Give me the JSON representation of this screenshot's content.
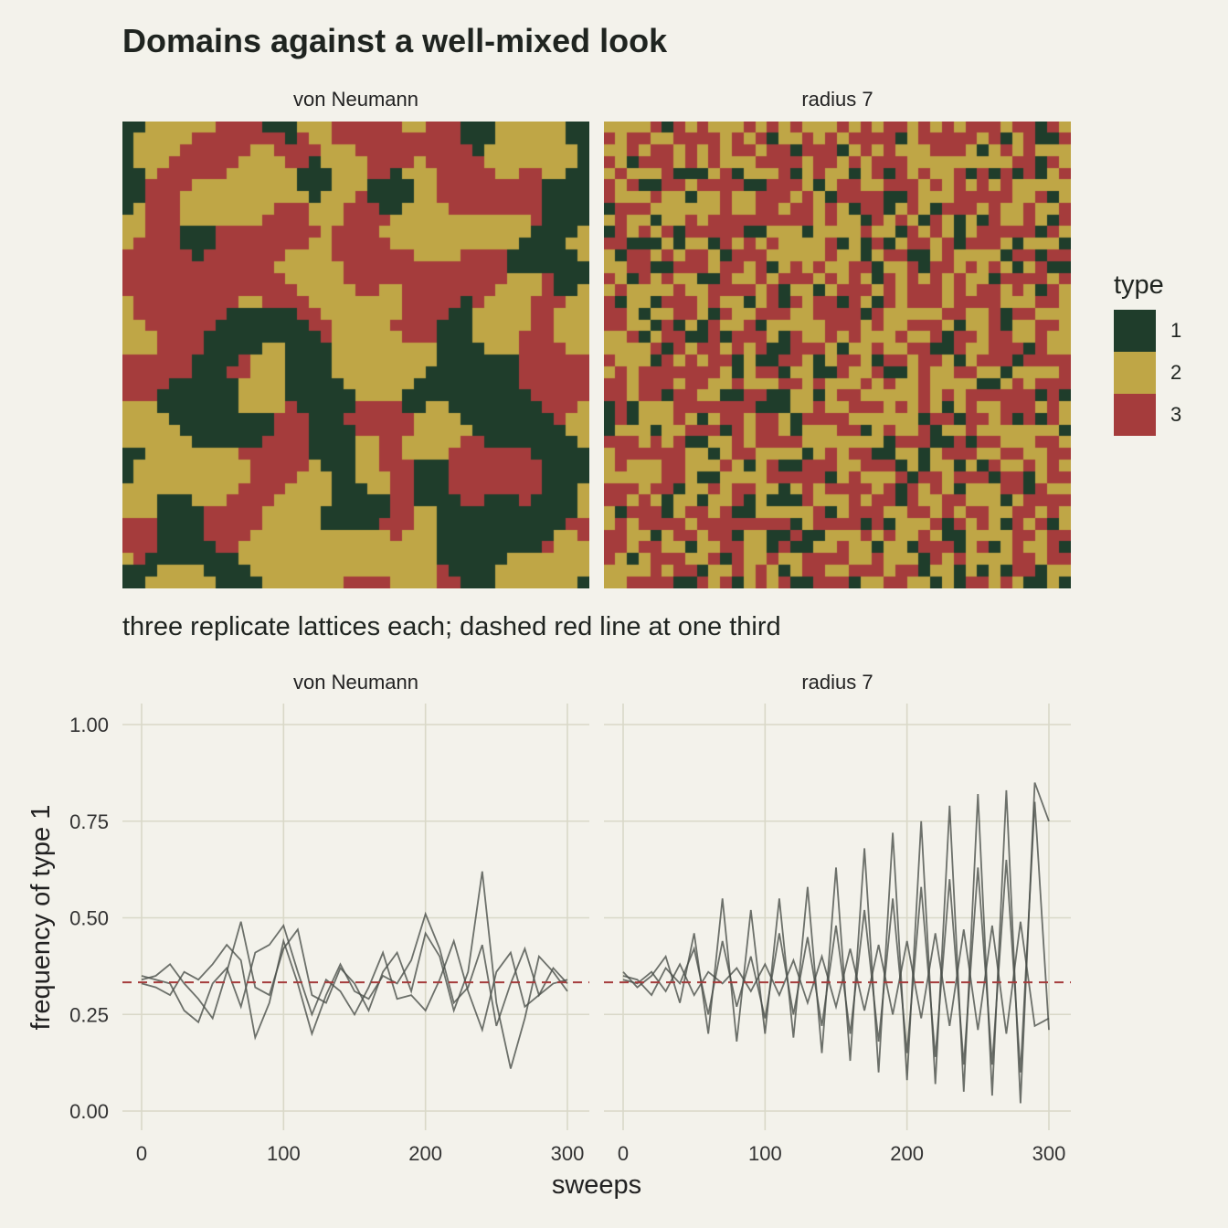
{
  "title": "Domains against a well-mixed look",
  "subtitle": "three replicate lattices each; dashed red line at one third",
  "colors": {
    "background": "#f3f2eb",
    "type1": "#1f3d2b",
    "type2": "#bfa646",
    "type3": "#a53c3c",
    "line": "#4a4f4a",
    "reference": "#a53c3c",
    "grid": "#d9d8c8"
  },
  "legend": {
    "title": "type",
    "items": [
      "1",
      "2",
      "3"
    ]
  },
  "chart_data": [
    {
      "type": "heatmap",
      "panels": [
        "von Neumann",
        "radius 7"
      ],
      "grid_size": 40,
      "fill_legend": "type",
      "categories": [
        "1",
        "2",
        "3"
      ]
    },
    {
      "type": "line",
      "panels": [
        "von Neumann",
        "radius 7"
      ],
      "xlabel": "sweeps",
      "ylabel": "frequency of type 1",
      "xlim": [
        0,
        300
      ],
      "ylim": [
        0,
        1
      ],
      "xticks": [
        "0",
        "100",
        "200",
        "300"
      ],
      "yticks": [
        "0.00",
        "0.25",
        "0.50",
        "0.75",
        "1.00"
      ],
      "reference_line": 0.333,
      "replicates": 3,
      "series": [
        {
          "panel": "von Neumann",
          "x": [
            0,
            10,
            20,
            30,
            40,
            50,
            60,
            70,
            80,
            90,
            100,
            110,
            120,
            130,
            140,
            150,
            160,
            170,
            180,
            190,
            200,
            210,
            220,
            230,
            240,
            250,
            260,
            270,
            280,
            290,
            300
          ],
          "values": [
            0.34,
            0.35,
            0.38,
            0.33,
            0.29,
            0.24,
            0.36,
            0.49,
            0.32,
            0.3,
            0.42,
            0.47,
            0.3,
            0.28,
            0.37,
            0.33,
            0.26,
            0.36,
            0.41,
            0.31,
            0.46,
            0.4,
            0.26,
            0.36,
            0.62,
            0.28,
            0.11,
            0.24,
            0.4,
            0.36,
            0.31
          ]
        },
        {
          "panel": "von Neumann",
          "x": [
            0,
            10,
            20,
            30,
            40,
            50,
            60,
            70,
            80,
            90,
            100,
            110,
            120,
            130,
            140,
            150,
            160,
            170,
            180,
            190,
            200,
            210,
            220,
            230,
            240,
            250,
            260,
            270,
            280,
            290,
            300
          ],
          "values": [
            0.33,
            0.32,
            0.3,
            0.36,
            0.34,
            0.38,
            0.43,
            0.39,
            0.19,
            0.28,
            0.44,
            0.33,
            0.2,
            0.3,
            0.38,
            0.31,
            0.29,
            0.35,
            0.33,
            0.39,
            0.51,
            0.42,
            0.28,
            0.32,
            0.43,
            0.22,
            0.33,
            0.42,
            0.3,
            0.37,
            0.33
          ]
        },
        {
          "panel": "von Neumann",
          "x": [
            0,
            10,
            20,
            30,
            40,
            50,
            60,
            70,
            80,
            90,
            100,
            110,
            120,
            130,
            140,
            150,
            160,
            170,
            180,
            190,
            200,
            210,
            220,
            230,
            240,
            250,
            260,
            270,
            280,
            290,
            300
          ],
          "values": [
            0.35,
            0.34,
            0.33,
            0.26,
            0.23,
            0.33,
            0.37,
            0.27,
            0.41,
            0.43,
            0.48,
            0.36,
            0.25,
            0.34,
            0.31,
            0.25,
            0.32,
            0.41,
            0.29,
            0.3,
            0.26,
            0.34,
            0.44,
            0.31,
            0.21,
            0.36,
            0.41,
            0.27,
            0.3,
            0.33,
            0.34
          ]
        },
        {
          "panel": "radius 7",
          "x": [
            0,
            10,
            20,
            30,
            40,
            50,
            60,
            70,
            80,
            90,
            100,
            110,
            120,
            130,
            140,
            150,
            160,
            170,
            180,
            190,
            200,
            210,
            220,
            230,
            240,
            250,
            260,
            270,
            280,
            290,
            300
          ],
          "values": [
            0.36,
            0.32,
            0.35,
            0.4,
            0.28,
            0.46,
            0.2,
            0.55,
            0.18,
            0.52,
            0.2,
            0.55,
            0.19,
            0.58,
            0.15,
            0.63,
            0.13,
            0.68,
            0.1,
            0.72,
            0.08,
            0.75,
            0.07,
            0.79,
            0.05,
            0.82,
            0.04,
            0.83,
            0.02,
            0.85,
            0.75
          ]
        },
        {
          "panel": "radius 7",
          "x": [
            0,
            10,
            20,
            30,
            40,
            50,
            60,
            70,
            80,
            90,
            100,
            110,
            120,
            130,
            140,
            150,
            160,
            170,
            180,
            190,
            200,
            210,
            220,
            230,
            240,
            250,
            260,
            270,
            280,
            290,
            300
          ],
          "values": [
            0.35,
            0.34,
            0.3,
            0.37,
            0.33,
            0.42,
            0.25,
            0.44,
            0.27,
            0.4,
            0.24,
            0.46,
            0.25,
            0.45,
            0.22,
            0.48,
            0.2,
            0.52,
            0.18,
            0.55,
            0.15,
            0.58,
            0.14,
            0.6,
            0.12,
            0.63,
            0.12,
            0.65,
            0.1,
            0.8,
            0.21
          ]
        },
        {
          "panel": "radius 7",
          "x": [
            0,
            10,
            20,
            30,
            40,
            50,
            60,
            70,
            80,
            90,
            100,
            110,
            120,
            130,
            140,
            150,
            160,
            170,
            180,
            190,
            200,
            210,
            220,
            230,
            240,
            250,
            260,
            270,
            280,
            290,
            300
          ],
          "values": [
            0.34,
            0.33,
            0.36,
            0.31,
            0.38,
            0.3,
            0.36,
            0.33,
            0.37,
            0.31,
            0.38,
            0.3,
            0.39,
            0.28,
            0.4,
            0.27,
            0.42,
            0.26,
            0.43,
            0.25,
            0.44,
            0.24,
            0.46,
            0.22,
            0.47,
            0.21,
            0.48,
            0.2,
            0.49,
            0.22,
            0.24
          ]
        }
      ]
    }
  ]
}
